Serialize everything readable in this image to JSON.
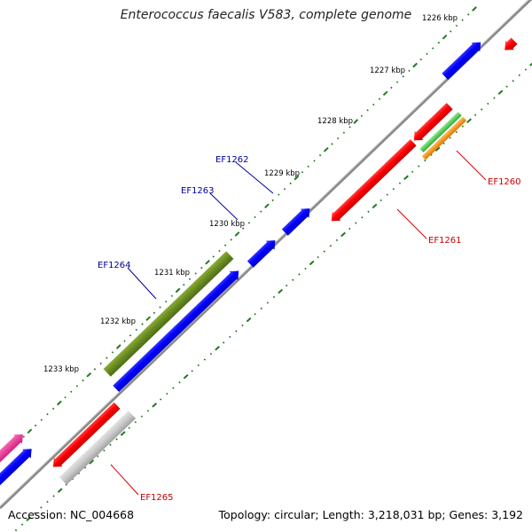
{
  "title": "Enterococcus faecalis V583, complete genome",
  "footer": {
    "accession": "Accession: NC_004668",
    "stats": "Topology: circular; Length: 3,218,031 bp; Genes: 3,192"
  },
  "kbp_labels": [
    "1226 kbp",
    "1227 kbp",
    "1228 kbp",
    "1229 kbp",
    "1230 kbp",
    "1231 kbp",
    "1232 kbp",
    "1233 kbp"
  ],
  "colors": {
    "backbone": "#8a8a8a",
    "ticks": "#1e7a1e",
    "forward_gene": "#0000ff",
    "reverse_gene": "#ff0000",
    "green_gene": "#6b8e23",
    "light_green_gene": "#55cc55",
    "orange_gene": "#ff9900",
    "gray_gene": "#c8c8c8",
    "pink_gene": "#ff3399",
    "forward_label": "#000099",
    "reverse_label": "#cc0000"
  },
  "gene_labels": {
    "forward": [
      "EF1262",
      "EF1263",
      "EF1264"
    ],
    "reverse": [
      "EF1260",
      "EF1261",
      "EF1265"
    ]
  }
}
